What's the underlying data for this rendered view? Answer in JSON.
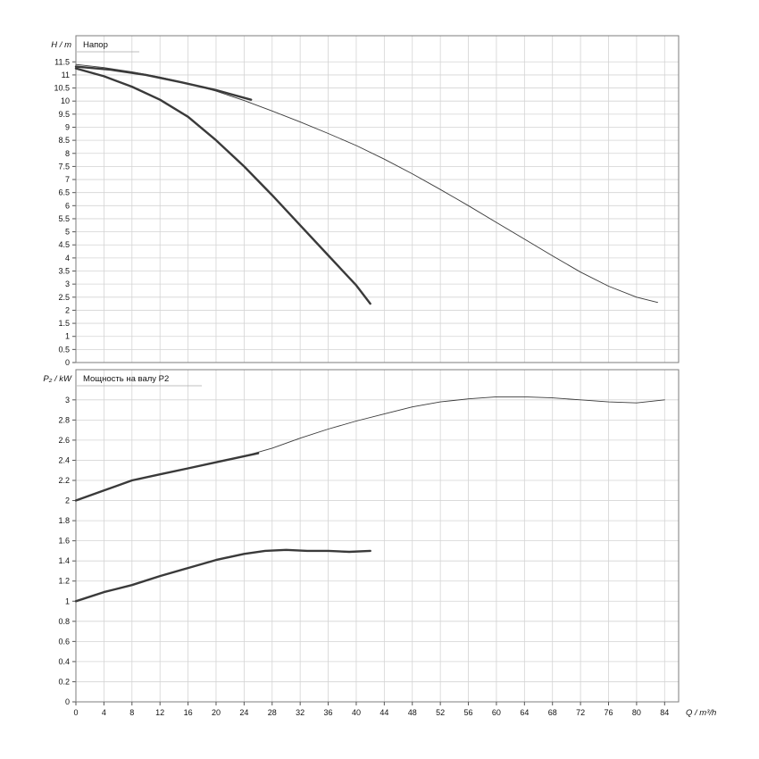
{
  "page": {
    "background": "#ffffff",
    "grid_color": "#d4d4d4",
    "frame_color": "#7d7d7d",
    "tick_color": "#555555",
    "curve_color": "#3a3a3a"
  },
  "chart_data": [
    {
      "type": "line",
      "title": "Напор",
      "ylabel": "H / m",
      "xlabel": "Q / m³/h",
      "xlim": [
        0,
        86
      ],
      "x_tick_step": 4,
      "x_tick_max": 84,
      "ylim": [
        0,
        12.5
      ],
      "y_tick_step": 0.5,
      "y_tick_max": 11.5,
      "grid": true,
      "legend_position": "top-left",
      "series": [
        {
          "name": "head-curve-max-speed-thin",
          "stroke": "#3a3a3a",
          "width": 0.9,
          "points": [
            [
              0,
              11.4
            ],
            [
              4,
              11.28
            ],
            [
              8,
              11.12
            ],
            [
              12,
              10.92
            ],
            [
              16,
              10.68
            ],
            [
              20,
              10.38
            ],
            [
              24,
              10.02
            ],
            [
              28,
              9.62
            ],
            [
              32,
              9.2
            ],
            [
              36,
              8.76
            ],
            [
              40,
              8.3
            ],
            [
              44,
              7.78
            ],
            [
              48,
              7.22
            ],
            [
              52,
              6.62
            ],
            [
              56,
              6.0
            ],
            [
              60,
              5.36
            ],
            [
              64,
              4.72
            ],
            [
              68,
              4.08
            ],
            [
              72,
              3.46
            ],
            [
              76,
              2.92
            ],
            [
              80,
              2.5
            ],
            [
              83,
              2.3
            ]
          ]
        },
        {
          "name": "head-curve-upper-bold",
          "stroke": "#3a3a3a",
          "width": 2.4,
          "points": [
            [
              0,
              11.32
            ],
            [
              5,
              11.2
            ],
            [
              10,
              11.0
            ],
            [
              15,
              10.72
            ],
            [
              20,
              10.42
            ],
            [
              25,
              10.05
            ]
          ]
        },
        {
          "name": "head-curve-steep-bold",
          "stroke": "#3a3a3a",
          "width": 2.4,
          "points": [
            [
              0,
              11.25
            ],
            [
              4,
              10.95
            ],
            [
              8,
              10.55
            ],
            [
              12,
              10.05
            ],
            [
              16,
              9.4
            ],
            [
              20,
              8.5
            ],
            [
              24,
              7.5
            ],
            [
              28,
              6.4
            ],
            [
              32,
              5.25
            ],
            [
              36,
              4.1
            ],
            [
              40,
              2.95
            ],
            [
              42,
              2.25
            ]
          ]
        }
      ]
    },
    {
      "type": "line",
      "title": "Мощность на валу P2",
      "ylabel": "P₂ / kW",
      "xlabel": "Q / m³/h",
      "xlim": [
        0,
        86
      ],
      "x_tick_step": 4,
      "x_tick_max": 84,
      "ylim": [
        0,
        3.3
      ],
      "y_tick_step": 0.2,
      "y_tick_max": 3.0,
      "grid": true,
      "legend_position": "top-left",
      "series": [
        {
          "name": "power-curve-max-speed-thin",
          "stroke": "#3a3a3a",
          "width": 0.9,
          "points": [
            [
              0,
              2.0
            ],
            [
              4,
              2.1
            ],
            [
              8,
              2.2
            ],
            [
              12,
              2.26
            ],
            [
              16,
              2.32
            ],
            [
              20,
              2.38
            ],
            [
              24,
              2.44
            ],
            [
              28,
              2.52
            ],
            [
              32,
              2.62
            ],
            [
              36,
              2.71
            ],
            [
              40,
              2.79
            ],
            [
              44,
              2.86
            ],
            [
              48,
              2.93
            ],
            [
              52,
              2.98
            ],
            [
              56,
              3.01
            ],
            [
              60,
              3.03
            ],
            [
              64,
              3.03
            ],
            [
              68,
              3.02
            ],
            [
              72,
              3.0
            ],
            [
              76,
              2.98
            ],
            [
              80,
              2.97
            ],
            [
              84,
              3.0
            ]
          ]
        },
        {
          "name": "power-curve-upper-bold",
          "stroke": "#3a3a3a",
          "width": 2.4,
          "points": [
            [
              0,
              2.0
            ],
            [
              4,
              2.1
            ],
            [
              8,
              2.2
            ],
            [
              12,
              2.26
            ],
            [
              16,
              2.32
            ],
            [
              20,
              2.38
            ],
            [
              24,
              2.44
            ],
            [
              26,
              2.47
            ]
          ]
        },
        {
          "name": "power-curve-lower-bold",
          "stroke": "#3a3a3a",
          "width": 2.4,
          "points": [
            [
              0,
              1.0
            ],
            [
              4,
              1.09
            ],
            [
              8,
              1.16
            ],
            [
              12,
              1.25
            ],
            [
              16,
              1.33
            ],
            [
              20,
              1.41
            ],
            [
              24,
              1.47
            ],
            [
              27,
              1.5
            ],
            [
              30,
              1.51
            ],
            [
              33,
              1.5
            ],
            [
              36,
              1.5
            ],
            [
              39,
              1.49
            ],
            [
              42,
              1.5
            ]
          ]
        }
      ]
    }
  ]
}
